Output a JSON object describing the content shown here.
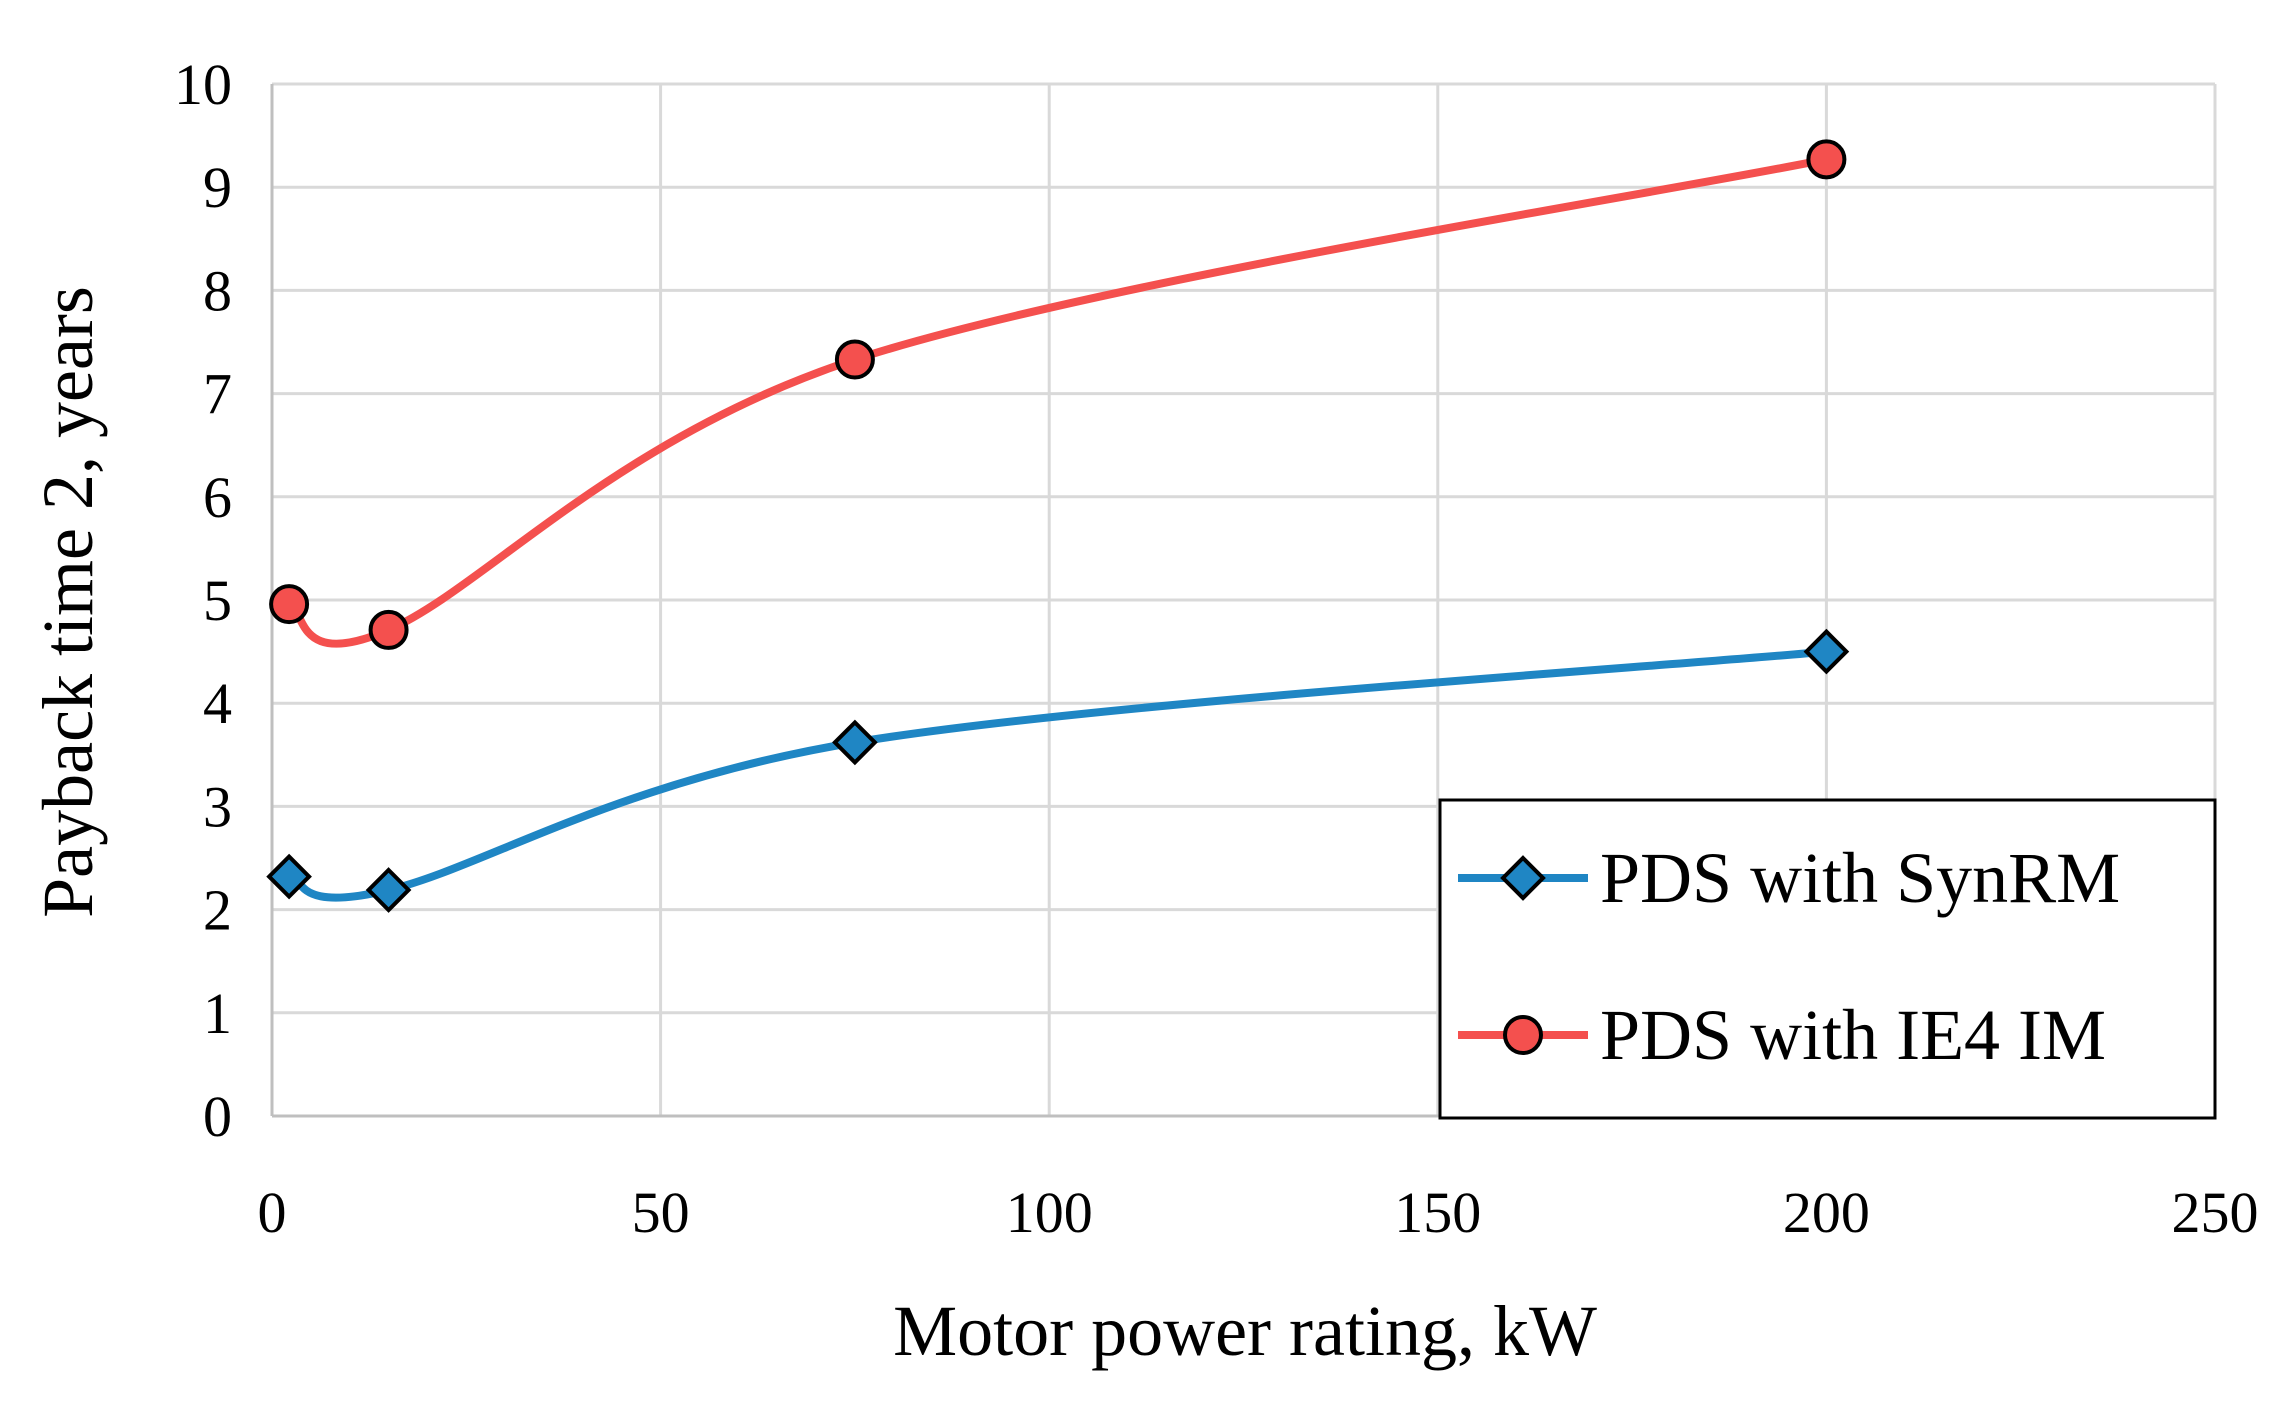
{
  "chart_data": {
    "type": "scatter",
    "title": "",
    "xlabel": "Motor power rating, kW",
    "ylabel": "Payback time 2, years",
    "xlim": [
      0,
      250
    ],
    "ylim": [
      0,
      10
    ],
    "xticks": [
      0,
      50,
      100,
      150,
      200,
      250
    ],
    "yticks": [
      0,
      1,
      2,
      3,
      4,
      5,
      6,
      7,
      8,
      9,
      10
    ],
    "grid": true,
    "smooth": true,
    "legend_position": "bottom-right",
    "series": [
      {
        "name": "PDS with SynRM",
        "color": "#1f86c4",
        "marker": "diamond",
        "x": [
          2.2,
          15,
          75,
          200
        ],
        "y": [
          2.32,
          2.19,
          3.62,
          4.5
        ]
      },
      {
        "name": "PDS with IE4 IM",
        "color": "#f4504e",
        "marker": "circle",
        "x": [
          2.2,
          15,
          75,
          200
        ],
        "y": [
          4.96,
          4.71,
          7.33,
          9.27
        ]
      }
    ]
  }
}
